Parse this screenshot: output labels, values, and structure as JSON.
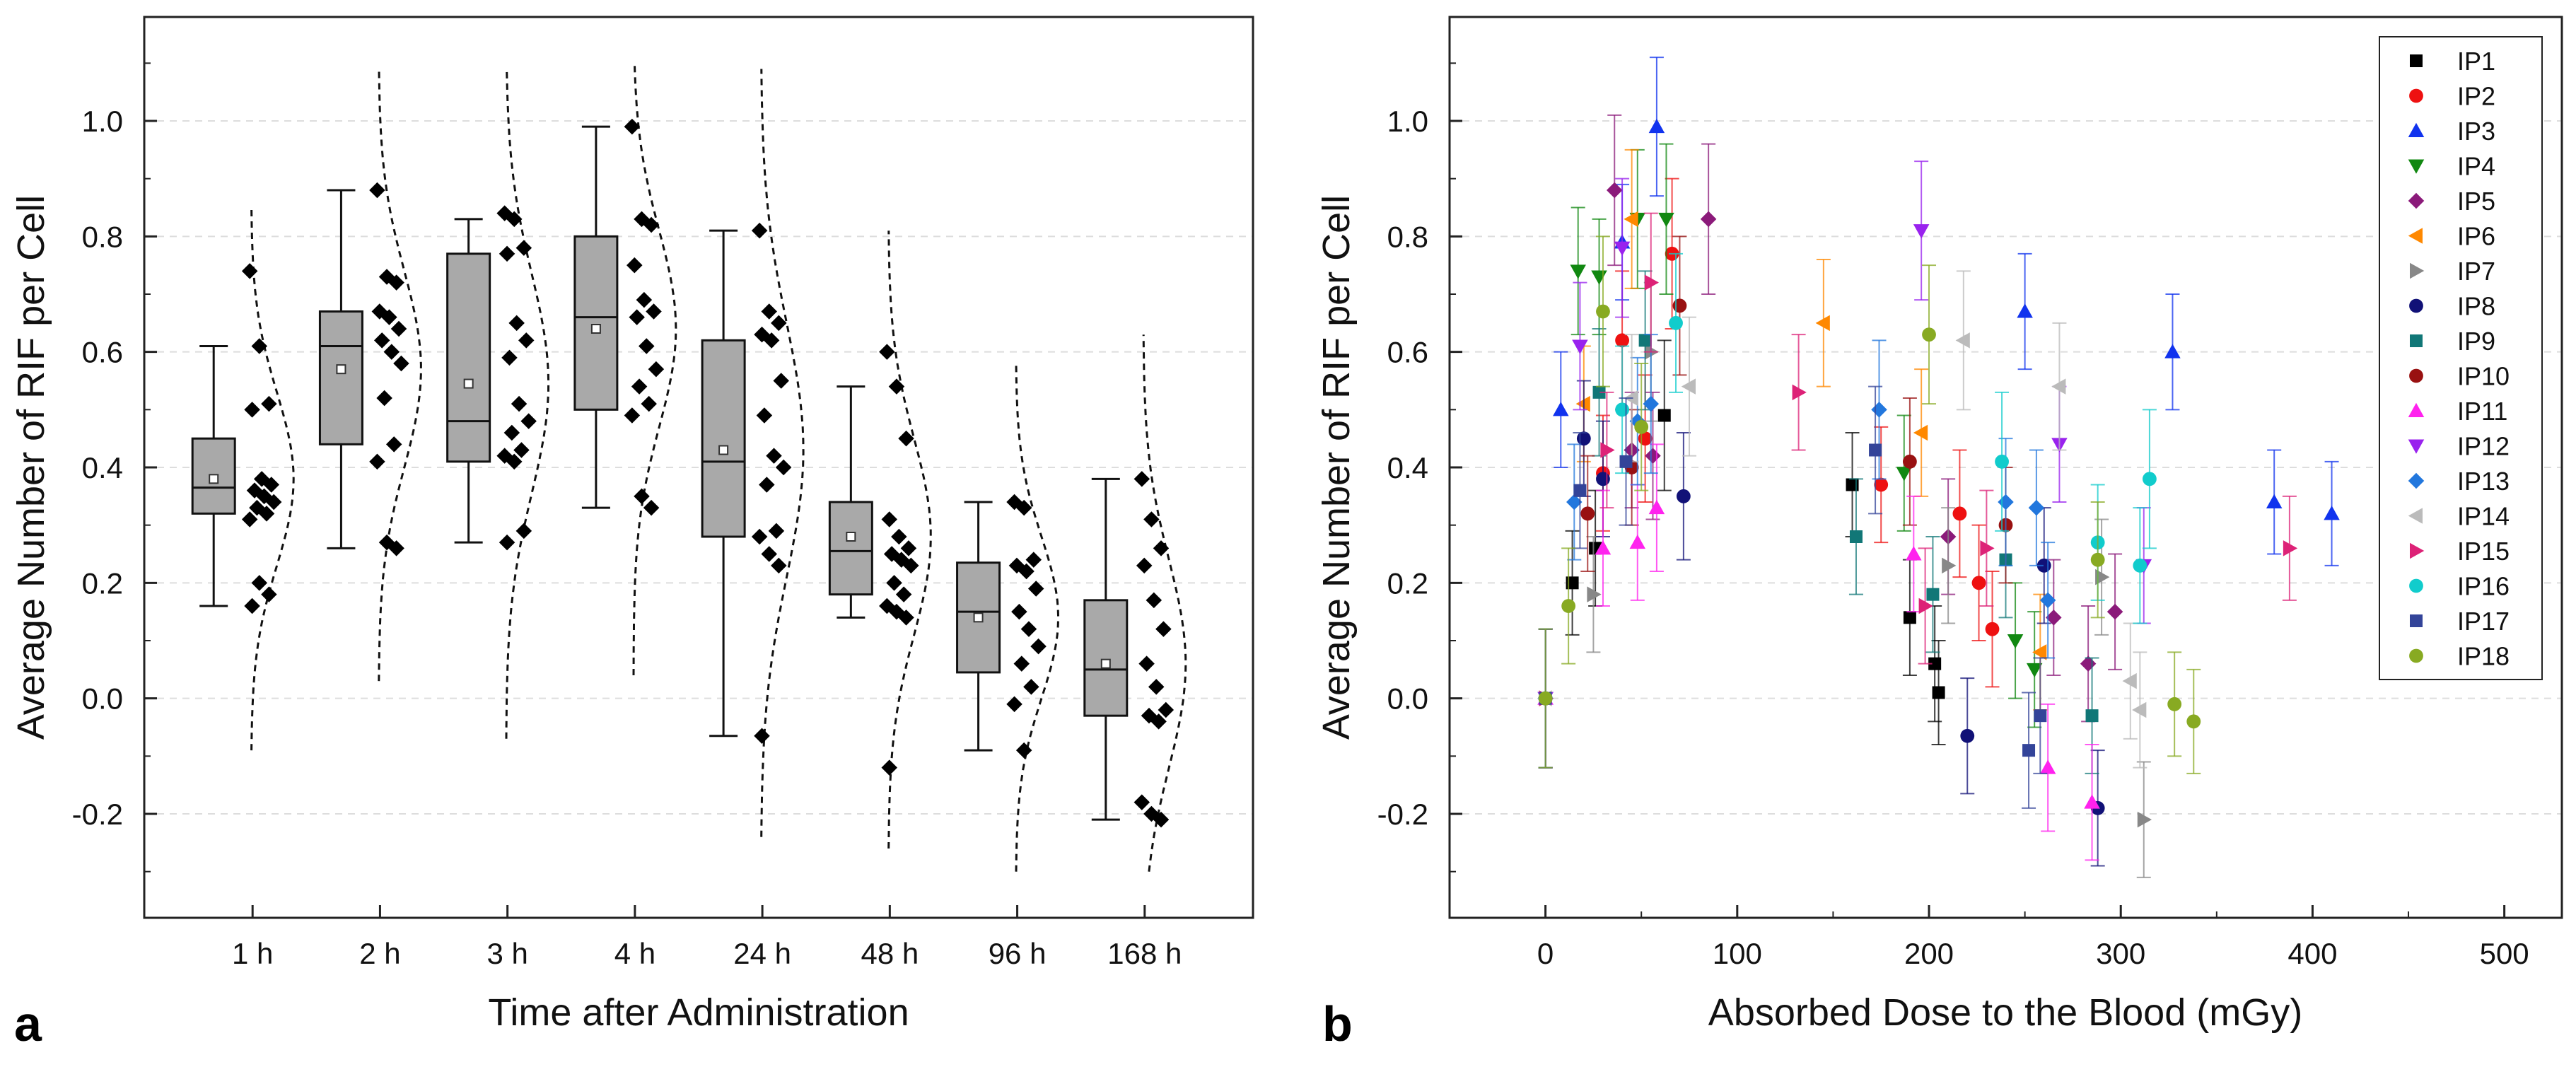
{
  "colors": {
    "IP1": "#000000",
    "IP2": "#ee1111",
    "IP3": "#1133ee",
    "IP4": "#118811",
    "IP5": "#8b1a7a",
    "IP6": "#ff8800",
    "IP7": "#888888",
    "IP8": "#111177",
    "IP9": "#117777",
    "IP10": "#991111",
    "IP11": "#ff22ee",
    "IP12": "#9922ee",
    "IP13": "#2277dd",
    "IP14": "#bbbbbb",
    "IP15": "#dd2277",
    "IP16": "#11cccc",
    "IP17": "#334499",
    "IP18": "#88aa22",
    "box_fill": "#a9a9a9"
  },
  "chart_data": [
    {
      "panel": "a",
      "type": "box",
      "xlabel": "Time after Administration",
      "ylabel": "Average Number of RIF per Cell",
      "ylim": [
        -0.38,
        1.18
      ],
      "yticks": [
        "-0.2",
        "0.0",
        "0.2",
        "0.4",
        "0.6",
        "0.8",
        "1.0"
      ],
      "categories": [
        "1 h",
        "2 h",
        "3 h",
        "4 h",
        "24 h",
        "48 h",
        "96 h",
        "168 h"
      ],
      "boxes": [
        {
          "q1": 0.32,
          "median": 0.365,
          "q3": 0.45,
          "mean": 0.38,
          "whisker_low": 0.16,
          "whisker_high": 0.61
        },
        {
          "q1": 0.44,
          "median": 0.61,
          "q3": 0.67,
          "mean": 0.57,
          "whisker_low": 0.26,
          "whisker_high": 0.88
        },
        {
          "q1": 0.41,
          "median": 0.48,
          "q3": 0.77,
          "mean": 0.545,
          "whisker_low": 0.27,
          "whisker_high": 0.83
        },
        {
          "q1": 0.5,
          "median": 0.66,
          "q3": 0.8,
          "mean": 0.64,
          "whisker_low": 0.33,
          "whisker_high": 0.99
        },
        {
          "q1": 0.28,
          "median": 0.41,
          "q3": 0.62,
          "mean": 0.43,
          "whisker_low": -0.065,
          "whisker_high": 0.81
        },
        {
          "q1": 0.18,
          "median": 0.255,
          "q3": 0.34,
          "mean": 0.28,
          "whisker_low": 0.14,
          "whisker_high": 0.54
        },
        {
          "q1": 0.045,
          "median": 0.15,
          "q3": 0.235,
          "mean": 0.14,
          "whisker_low": -0.09,
          "whisker_high": 0.34
        },
        {
          "q1": -0.03,
          "median": 0.05,
          "q3": 0.17,
          "mean": 0.06,
          "whisker_low": -0.21,
          "whisker_high": 0.38
        }
      ],
      "points": [
        [
          0.74,
          0.61,
          0.51,
          0.5,
          0.38,
          0.37,
          0.36,
          0.35,
          0.34,
          0.33,
          0.32,
          0.31,
          0.2,
          0.18,
          0.16
        ],
        [
          0.88,
          0.73,
          0.72,
          0.67,
          0.66,
          0.64,
          0.62,
          0.6,
          0.58,
          0.52,
          0.44,
          0.41,
          0.27,
          0.26
        ],
        [
          0.84,
          0.83,
          0.78,
          0.77,
          0.65,
          0.62,
          0.59,
          0.51,
          0.48,
          0.46,
          0.43,
          0.42,
          0.41,
          0.29,
          0.27
        ],
        [
          0.99,
          0.83,
          0.82,
          0.75,
          0.69,
          0.67,
          0.66,
          0.61,
          0.57,
          0.54,
          0.51,
          0.49,
          0.35,
          0.33
        ],
        [
          0.81,
          0.67,
          0.65,
          0.63,
          0.62,
          0.55,
          0.49,
          0.42,
          0.4,
          0.37,
          0.29,
          0.28,
          0.25,
          0.23,
          -0.065
        ],
        [
          0.6,
          0.54,
          0.45,
          0.31,
          0.28,
          0.26,
          0.25,
          0.24,
          0.23,
          0.2,
          0.18,
          0.16,
          0.15,
          0.14,
          -0.12
        ],
        [
          0.34,
          0.33,
          0.24,
          0.23,
          0.22,
          0.19,
          0.15,
          0.12,
          0.09,
          0.06,
          0.02,
          -0.01,
          -0.09
        ],
        [
          0.38,
          0.31,
          0.26,
          0.23,
          0.17,
          0.12,
          0.06,
          0.02,
          -0.02,
          -0.03,
          -0.04,
          -0.18,
          -0.2,
          -0.21
        ]
      ],
      "distribution_curves": [
        {
          "mean": 0.38,
          "sd": 0.15,
          "low": -0.09,
          "high": 0.85
        },
        {
          "mean": 0.57,
          "sd": 0.17,
          "low": 0.03,
          "high": 1.09
        },
        {
          "mean": 0.545,
          "sd": 0.19,
          "low": -0.07,
          "high": 1.09
        },
        {
          "mean": 0.64,
          "sd": 0.17,
          "low": 0.04,
          "high": 1.1
        },
        {
          "mean": 0.43,
          "sd": 0.22,
          "low": -0.24,
          "high": 1.09
        },
        {
          "mean": 0.28,
          "sd": 0.17,
          "low": -0.26,
          "high": 0.81
        },
        {
          "mean": 0.14,
          "sd": 0.14,
          "low": -0.3,
          "high": 0.58
        },
        {
          "mean": 0.06,
          "sd": 0.18,
          "low": -0.3,
          "high": 0.63
        }
      ]
    },
    {
      "panel": "b",
      "type": "scatter",
      "xlabel": "Absorbed Dose to the Blood (mGy)",
      "ylabel": "Average Number of RIF per Cell",
      "xlim": [
        -50,
        530
      ],
      "ylim": [
        -0.38,
        1.18
      ],
      "xticks": [
        "0",
        "100",
        "200",
        "300",
        "400",
        "500"
      ],
      "yticks": [
        "-0.2",
        "0.0",
        "0.2",
        "0.4",
        "0.6",
        "0.8",
        "1.0"
      ],
      "series": [
        {
          "name": "IP1",
          "marker": "square",
          "points": [
            [
              0,
              0,
              0.12
            ],
            [
              14,
              0.2,
              0.09
            ],
            [
              26,
              0.26,
              0.1
            ],
            [
              62,
              0.49,
              0.13
            ],
            [
              160,
              0.37,
              0.09
            ],
            [
              190,
              0.14,
              0.1
            ],
            [
              203,
              0.06,
              0.1
            ],
            [
              205,
              0.01,
              0.09
            ]
          ]
        },
        {
          "name": "IP2",
          "marker": "circle",
          "points": [
            [
              0,
              0,
              0.12
            ],
            [
              30,
              0.39,
              0.1
            ],
            [
              40,
              0.62,
              0.12
            ],
            [
              52,
              0.45,
              0.11
            ],
            [
              66,
              0.77,
              0.13
            ],
            [
              175,
              0.37,
              0.1
            ],
            [
              216,
              0.32,
              0.11
            ],
            [
              226,
              0.2,
              0.1
            ],
            [
              233,
              0.12,
              0.1
            ]
          ]
        },
        {
          "name": "IP3",
          "marker": "triangle-up",
          "points": [
            [
              0,
              0,
              0.12
            ],
            [
              8,
              0.5,
              0.1
            ],
            [
              40,
              0.79,
              0.1
            ],
            [
              58,
              0.99,
              0.12
            ],
            [
              250,
              0.67,
              0.1
            ],
            [
              327,
              0.6,
              0.1
            ],
            [
              380,
              0.34,
              0.09
            ],
            [
              410,
              0.32,
              0.09
            ]
          ]
        },
        {
          "name": "IP4",
          "marker": "triangle-down",
          "points": [
            [
              0,
              0,
              0.12
            ],
            [
              17,
              0.74,
              0.11
            ],
            [
              28,
              0.73,
              0.1
            ],
            [
              48,
              0.83,
              0.12
            ],
            [
              63,
              0.83,
              0.13
            ],
            [
              187,
              0.39,
              0.1
            ],
            [
              245,
              0.1,
              0.1
            ],
            [
              255,
              0.05,
              0.1
            ]
          ]
        },
        {
          "name": "IP5",
          "marker": "diamond",
          "points": [
            [
              0,
              0,
              0.12
            ],
            [
              36,
              0.88,
              0.13
            ],
            [
              45,
              0.43,
              0.1
            ],
            [
              56,
              0.42,
              0.11
            ],
            [
              85,
              0.83,
              0.13
            ],
            [
              210,
              0.28,
              0.1
            ],
            [
              265,
              0.14,
              0.1
            ],
            [
              283,
              0.06,
              0.1
            ],
            [
              297,
              0.15,
              0.1
            ]
          ]
        },
        {
          "name": "IP6",
          "marker": "triangle-left",
          "points": [
            [
              0,
              0,
              0.12
            ],
            [
              20,
              0.51,
              0.1
            ],
            [
              45,
              0.83,
              0.12
            ],
            [
              145,
              0.65,
              0.11
            ],
            [
              196,
              0.46,
              0.11
            ],
            [
              258,
              0.08,
              0.1
            ]
          ]
        },
        {
          "name": "IP7",
          "marker": "triangle-right",
          "points": [
            [
              0,
              0,
              0.12
            ],
            [
              25,
              0.18,
              0.1
            ],
            [
              55,
              0.6,
              0.12
            ],
            [
              210,
              0.23,
              0.1
            ],
            [
              290,
              0.21,
              0.1
            ],
            [
              312,
              -0.21,
              0.1
            ]
          ]
        },
        {
          "name": "IP8",
          "marker": "circle",
          "points": [
            [
              0,
              0,
              0.12
            ],
            [
              20,
              0.45,
              0.1
            ],
            [
              30,
              0.38,
              0.1
            ],
            [
              72,
              0.35,
              0.11
            ],
            [
              220,
              -0.065,
              0.1
            ],
            [
              260,
              0.23,
              0.1
            ],
            [
              288,
              -0.19,
              0.1
            ]
          ]
        },
        {
          "name": "IP9",
          "marker": "square",
          "points": [
            [
              0,
              0,
              0.12
            ],
            [
              28,
              0.53,
              0.11
            ],
            [
              52,
              0.62,
              0.12
            ],
            [
              162,
              0.28,
              0.1
            ],
            [
              202,
              0.18,
              0.1
            ],
            [
              240,
              0.24,
              0.1
            ],
            [
              285,
              -0.03,
              0.1
            ]
          ]
        },
        {
          "name": "IP10",
          "marker": "circle",
          "points": [
            [
              0,
              0,
              0.12
            ],
            [
              22,
              0.32,
              0.1
            ],
            [
              45,
              0.4,
              0.1
            ],
            [
              70,
              0.68,
              0.12
            ],
            [
              190,
              0.41,
              0.11
            ],
            [
              240,
              0.3,
              0.1
            ]
          ]
        },
        {
          "name": "IP11",
          "marker": "triangle-up",
          "points": [
            [
              0,
              0,
              0.12
            ],
            [
              30,
              0.26,
              0.1
            ],
            [
              48,
              0.27,
              0.1
            ],
            [
              58,
              0.33,
              0.11
            ],
            [
              192,
              0.25,
              0.1
            ],
            [
              262,
              -0.12,
              0.11
            ],
            [
              285,
              -0.18,
              0.1
            ]
          ]
        },
        {
          "name": "IP12",
          "marker": "triangle-down",
          "points": [
            [
              0,
              0,
              0.12
            ],
            [
              18,
              0.61,
              0.11
            ],
            [
              40,
              0.78,
              0.12
            ],
            [
              196,
              0.81,
              0.12
            ],
            [
              268,
              0.44,
              0.1
            ],
            [
              312,
              0.23,
              0.1
            ]
          ]
        },
        {
          "name": "IP13",
          "marker": "diamond",
          "points": [
            [
              0,
              0,
              0.12
            ],
            [
              15,
              0.34,
              0.1
            ],
            [
              48,
              0.48,
              0.11
            ],
            [
              55,
              0.51,
              0.12
            ],
            [
              174,
              0.5,
              0.12
            ],
            [
              240,
              0.34,
              0.11
            ],
            [
              256,
              0.33,
              0.1
            ],
            [
              262,
              0.17,
              0.1
            ]
          ]
        },
        {
          "name": "IP14",
          "marker": "triangle-left",
          "points": [
            [
              0,
              0,
              0.12
            ],
            [
              45,
              0.52,
              0.11
            ],
            [
              75,
              0.54,
              0.12
            ],
            [
              218,
              0.62,
              0.12
            ],
            [
              268,
              0.54,
              0.11
            ],
            [
              305,
              0.03,
              0.1
            ],
            [
              310,
              -0.02,
              0.1
            ]
          ]
        },
        {
          "name": "IP15",
          "marker": "triangle-right",
          "points": [
            [
              0,
              0,
              0.12
            ],
            [
              32,
              0.43,
              0.1
            ],
            [
              55,
              0.72,
              0.12
            ],
            [
              132,
              0.53,
              0.1
            ],
            [
              198,
              0.16,
              0.1
            ],
            [
              230,
              0.26,
              0.1
            ],
            [
              388,
              0.26,
              0.09
            ]
          ]
        },
        {
          "name": "IP16",
          "marker": "circle",
          "points": [
            [
              0,
              0,
              0.12
            ],
            [
              40,
              0.5,
              0.11
            ],
            [
              68,
              0.65,
              0.12
            ],
            [
              238,
              0.41,
              0.12
            ],
            [
              288,
              0.27,
              0.1
            ],
            [
              310,
              0.23,
              0.1
            ],
            [
              315,
              0.38,
              0.12
            ]
          ]
        },
        {
          "name": "IP17",
          "marker": "square",
          "points": [
            [
              0,
              0,
              0.12
            ],
            [
              18,
              0.36,
              0.1
            ],
            [
              42,
              0.41,
              0.11
            ],
            [
              172,
              0.43,
              0.11
            ],
            [
              252,
              -0.09,
              0.1
            ],
            [
              258,
              -0.03,
              0.1
            ]
          ]
        },
        {
          "name": "IP18",
          "marker": "circle",
          "points": [
            [
              0,
              0,
              0.12
            ],
            [
              12,
              0.16,
              0.1
            ],
            [
              30,
              0.67,
              0.13
            ],
            [
              50,
              0.47,
              0.11
            ],
            [
              200,
              0.63,
              0.12
            ],
            [
              288,
              0.24,
              0.1
            ],
            [
              328,
              -0.01,
              0.09
            ],
            [
              338,
              -0.04,
              0.09
            ]
          ]
        }
      ],
      "legend_position": "top-right"
    }
  ]
}
